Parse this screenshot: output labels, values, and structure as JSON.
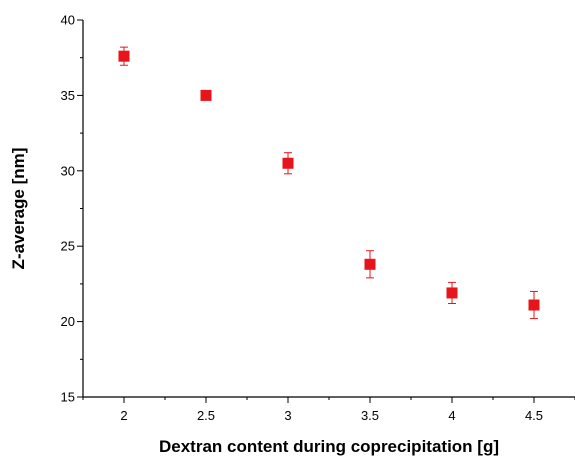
{
  "chart_data": {
    "type": "scatter",
    "title": "",
    "xlabel": "Dextran content during coprecipitation [g]",
    "ylabel": "Z-average [nm]",
    "xlim": [
      1.75,
      4.75
    ],
    "ylim": [
      15,
      40
    ],
    "x_ticks": [
      "2",
      "2.5",
      "3",
      "3.5",
      "4",
      "4.5"
    ],
    "y_ticks": [
      "15",
      "20",
      "25",
      "30",
      "35",
      "40"
    ],
    "grid": false,
    "legend": "none",
    "marker_color": "#e8141c",
    "error_color": "#e8141c",
    "series": [
      {
        "x": [
          2,
          2.5,
          3,
          3.5,
          4,
          4.5
        ],
        "y": [
          37.6,
          35.0,
          30.5,
          23.8,
          21.9,
          21.1
        ],
        "err": [
          0.6,
          0.2,
          0.7,
          0.9,
          0.7,
          0.9
        ]
      }
    ]
  }
}
